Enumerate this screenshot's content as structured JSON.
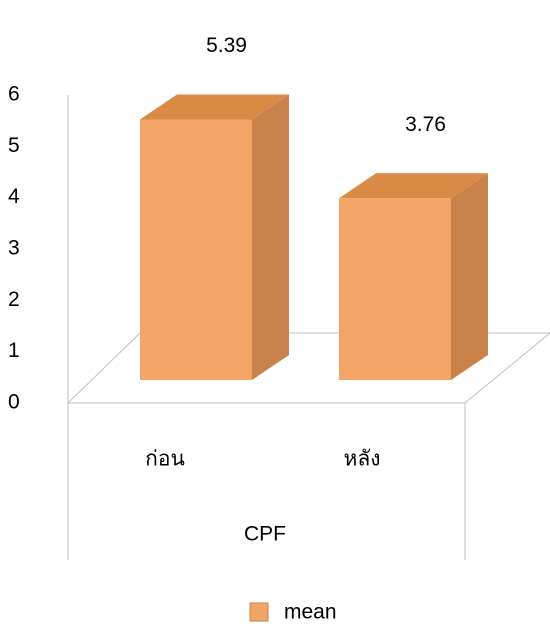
{
  "chart_data": {
    "type": "bar3d",
    "categories": [
      "ก่อน",
      "หลัง"
    ],
    "x_label": "CPF",
    "series": [
      {
        "name": "mean",
        "color": "#f2a566",
        "values": [
          5.39,
          3.76
        ]
      }
    ],
    "ylim": [
      0,
      6
    ],
    "yticks": [
      0,
      1,
      2,
      3,
      4,
      5,
      6
    ],
    "legend": "bottom"
  }
}
